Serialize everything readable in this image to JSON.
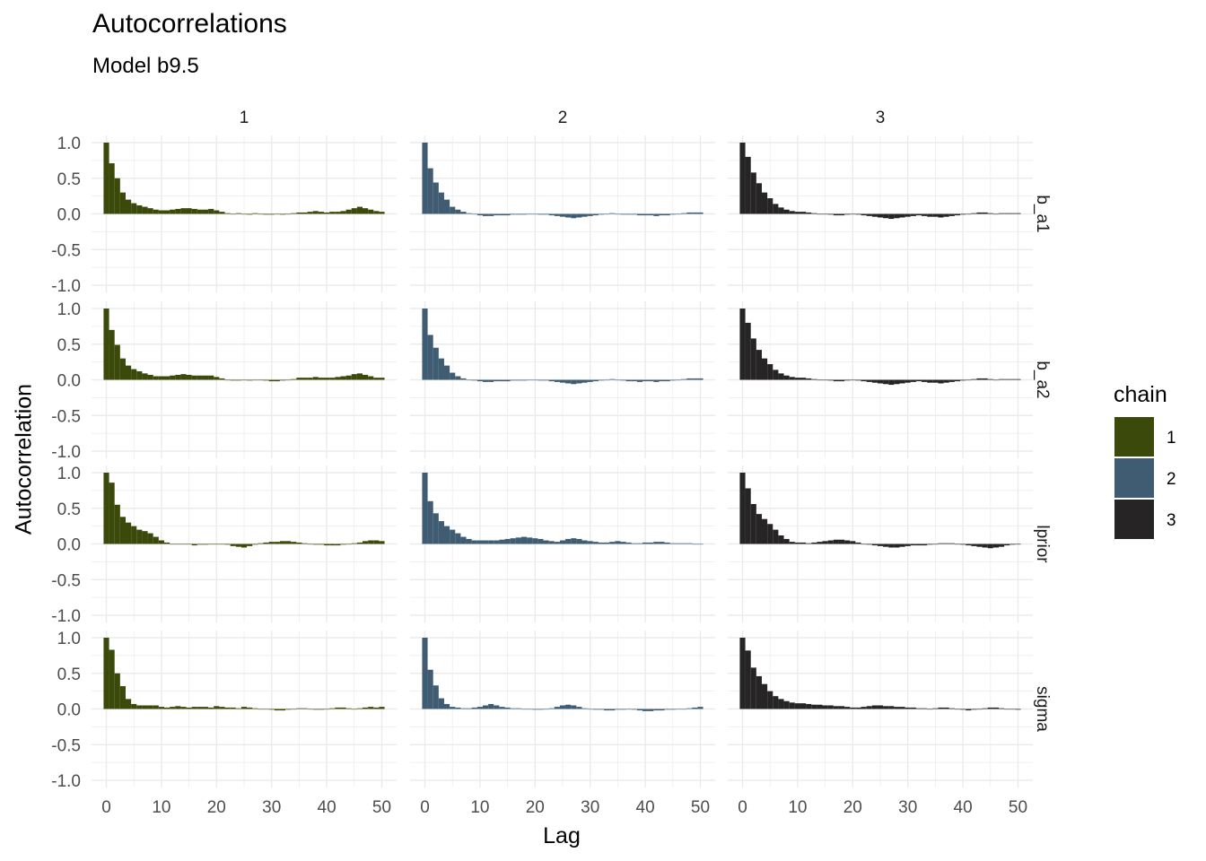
{
  "chart_data": {
    "type": "bar",
    "title": "Autocorrelations",
    "subtitle": "Model b9.5",
    "xlabel": "Lag",
    "ylabel": "Autocorrelation",
    "xlim": [
      0,
      50
    ],
    "ylim": [
      -1.0,
      1.0
    ],
    "x_ticks": [
      0,
      10,
      20,
      30,
      40,
      50
    ],
    "y_ticks": [
      -1.0,
      -0.5,
      0.0,
      0.5,
      1.0
    ],
    "y_tick_labels": [
      "-1.0",
      "-0.5",
      "0.0",
      "0.5",
      "1.0"
    ],
    "grid": true,
    "legend": {
      "title": "chain",
      "placement": "right",
      "entries": [
        {
          "label": "1",
          "color": "#3b4a0b"
        },
        {
          "label": "2",
          "color": "#3f5c72"
        },
        {
          "label": "3",
          "color": "#262424"
        }
      ]
    },
    "columns": [
      "1",
      "2",
      "3"
    ],
    "rows": [
      "b_a1",
      "b_a2",
      "lprior",
      "sigma"
    ],
    "lags": [
      0,
      1,
      2,
      3,
      4,
      5,
      6,
      7,
      8,
      9,
      10,
      11,
      12,
      13,
      14,
      15,
      16,
      17,
      18,
      19,
      20,
      21,
      22,
      23,
      24,
      25,
      26,
      27,
      28,
      29,
      30,
      31,
      32,
      33,
      34,
      35,
      36,
      37,
      38,
      39,
      40,
      41,
      42,
      43,
      44,
      45,
      46,
      47,
      48,
      49,
      50
    ],
    "panels": [
      {
        "row": "b_a1",
        "chain": "1",
        "values": [
          1.0,
          0.71,
          0.5,
          0.3,
          0.2,
          0.15,
          0.12,
          0.1,
          0.08,
          0.06,
          0.05,
          0.05,
          0.06,
          0.07,
          0.08,
          0.08,
          0.07,
          0.06,
          0.06,
          0.07,
          0.05,
          0.03,
          0.01,
          0.0,
          0.01,
          0.0,
          -0.01,
          0.01,
          0.0,
          -0.01,
          -0.01,
          0.0,
          -0.01,
          0.0,
          0.01,
          0.02,
          0.02,
          0.03,
          0.04,
          0.03,
          0.02,
          0.03,
          0.03,
          0.04,
          0.06,
          0.08,
          0.1,
          0.08,
          0.06,
          0.04,
          0.03
        ]
      },
      {
        "row": "b_a1",
        "chain": "2",
        "values": [
          1.0,
          0.64,
          0.44,
          0.3,
          0.2,
          0.1,
          0.06,
          0.03,
          0.01,
          0.0,
          -0.02,
          -0.03,
          -0.03,
          -0.02,
          -0.02,
          -0.02,
          -0.01,
          -0.01,
          -0.01,
          0.0,
          0.0,
          -0.01,
          -0.01,
          -0.02,
          -0.03,
          -0.04,
          -0.05,
          -0.06,
          -0.05,
          -0.04,
          -0.03,
          -0.02,
          -0.01,
          0.0,
          0.01,
          0.0,
          -0.01,
          -0.01,
          -0.01,
          -0.02,
          -0.02,
          -0.02,
          -0.03,
          -0.02,
          -0.02,
          -0.01,
          0.0,
          0.01,
          0.02,
          0.02,
          0.02
        ]
      },
      {
        "row": "b_a1",
        "chain": "3",
        "values": [
          1.0,
          0.8,
          0.58,
          0.43,
          0.3,
          0.22,
          0.14,
          0.09,
          0.06,
          0.04,
          0.03,
          0.03,
          0.02,
          0.01,
          0.0,
          0.0,
          -0.01,
          -0.02,
          -0.02,
          -0.01,
          0.0,
          -0.01,
          -0.02,
          -0.03,
          -0.04,
          -0.05,
          -0.06,
          -0.07,
          -0.06,
          -0.05,
          -0.04,
          -0.03,
          -0.02,
          -0.03,
          -0.04,
          -0.04,
          -0.05,
          -0.04,
          -0.03,
          -0.02,
          -0.01,
          0.0,
          0.01,
          0.02,
          0.02,
          0.01,
          0.0,
          0.01,
          0.01,
          0.01,
          0.01
        ]
      },
      {
        "row": "b_a2",
        "chain": "1",
        "values": [
          1.0,
          0.7,
          0.49,
          0.3,
          0.2,
          0.15,
          0.12,
          0.09,
          0.07,
          0.05,
          0.05,
          0.05,
          0.06,
          0.07,
          0.08,
          0.07,
          0.06,
          0.06,
          0.06,
          0.06,
          0.04,
          0.02,
          0.0,
          -0.01,
          -0.01,
          0.0,
          -0.01,
          0.0,
          0.0,
          -0.01,
          -0.02,
          -0.02,
          -0.01,
          0.0,
          0.01,
          0.03,
          0.03,
          0.03,
          0.04,
          0.03,
          0.03,
          0.03,
          0.04,
          0.05,
          0.06,
          0.08,
          0.09,
          0.07,
          0.05,
          0.03,
          0.03
        ]
      },
      {
        "row": "b_a2",
        "chain": "2",
        "values": [
          1.0,
          0.63,
          0.45,
          0.3,
          0.2,
          0.1,
          0.05,
          0.02,
          0.0,
          -0.01,
          -0.02,
          -0.03,
          -0.03,
          -0.02,
          -0.02,
          -0.02,
          -0.01,
          -0.01,
          -0.01,
          0.0,
          0.0,
          -0.01,
          -0.01,
          -0.02,
          -0.03,
          -0.04,
          -0.05,
          -0.06,
          -0.05,
          -0.04,
          -0.03,
          -0.02,
          -0.01,
          0.0,
          0.01,
          0.0,
          -0.01,
          -0.02,
          -0.02,
          -0.03,
          -0.02,
          -0.02,
          -0.03,
          -0.02,
          -0.02,
          -0.01,
          0.0,
          0.01,
          0.02,
          0.02,
          0.02
        ]
      },
      {
        "row": "b_a2",
        "chain": "3",
        "values": [
          1.0,
          0.8,
          0.58,
          0.42,
          0.3,
          0.22,
          0.14,
          0.09,
          0.06,
          0.04,
          0.03,
          0.03,
          0.02,
          0.01,
          0.0,
          0.0,
          -0.01,
          -0.02,
          -0.02,
          -0.01,
          0.0,
          -0.01,
          -0.02,
          -0.03,
          -0.04,
          -0.05,
          -0.06,
          -0.07,
          -0.06,
          -0.05,
          -0.04,
          -0.03,
          -0.02,
          -0.03,
          -0.04,
          -0.04,
          -0.05,
          -0.04,
          -0.03,
          -0.02,
          -0.01,
          0.0,
          0.01,
          0.02,
          0.02,
          0.01,
          0.0,
          0.01,
          0.01,
          0.01,
          0.01
        ]
      },
      {
        "row": "lprior",
        "chain": "1",
        "values": [
          1.0,
          0.86,
          0.55,
          0.38,
          0.3,
          0.25,
          0.2,
          0.18,
          0.15,
          0.1,
          0.05,
          0.02,
          0.0,
          0.0,
          0.0,
          0.0,
          -0.02,
          -0.01,
          -0.01,
          0.0,
          0.0,
          0.0,
          -0.01,
          -0.03,
          -0.04,
          -0.05,
          -0.03,
          -0.01,
          0.01,
          0.02,
          0.03,
          0.03,
          0.04,
          0.04,
          0.03,
          0.02,
          0.01,
          0.0,
          -0.01,
          -0.01,
          -0.02,
          -0.02,
          -0.02,
          -0.01,
          0.0,
          0.01,
          0.02,
          0.04,
          0.05,
          0.05,
          0.04
        ]
      },
      {
        "row": "lprior",
        "chain": "2",
        "values": [
          1.0,
          0.6,
          0.43,
          0.32,
          0.25,
          0.2,
          0.15,
          0.1,
          0.07,
          0.05,
          0.05,
          0.05,
          0.05,
          0.05,
          0.06,
          0.07,
          0.08,
          0.09,
          0.1,
          0.09,
          0.08,
          0.07,
          0.05,
          0.04,
          0.03,
          0.05,
          0.07,
          0.08,
          0.07,
          0.05,
          0.04,
          0.03,
          0.02,
          0.02,
          0.03,
          0.04,
          0.03,
          0.02,
          0.01,
          0.01,
          0.02,
          0.02,
          0.03,
          0.03,
          0.02,
          0.01,
          0.01,
          0.01,
          0.01,
          0.0,
          0.0
        ]
      },
      {
        "row": "lprior",
        "chain": "3",
        "values": [
          1.0,
          0.78,
          0.56,
          0.42,
          0.35,
          0.28,
          0.2,
          0.12,
          0.07,
          0.03,
          0.02,
          0.02,
          0.01,
          0.02,
          0.03,
          0.04,
          0.05,
          0.06,
          0.06,
          0.05,
          0.04,
          0.02,
          0.0,
          -0.01,
          -0.02,
          -0.03,
          -0.04,
          -0.05,
          -0.05,
          -0.04,
          -0.03,
          -0.02,
          -0.02,
          -0.02,
          -0.01,
          0.0,
          0.01,
          0.01,
          0.01,
          0.0,
          -0.01,
          -0.02,
          -0.03,
          -0.04,
          -0.05,
          -0.06,
          -0.05,
          -0.04,
          -0.02,
          -0.01,
          0.0
        ]
      },
      {
        "row": "sigma",
        "chain": "1",
        "values": [
          1.0,
          0.83,
          0.5,
          0.32,
          0.14,
          0.07,
          0.05,
          0.05,
          0.05,
          0.05,
          0.03,
          0.02,
          0.03,
          0.04,
          0.03,
          0.02,
          0.03,
          0.03,
          0.03,
          0.02,
          0.04,
          0.03,
          0.02,
          0.02,
          0.01,
          0.03,
          0.02,
          0.01,
          0.0,
          0.0,
          -0.01,
          -0.02,
          -0.02,
          -0.01,
          0.0,
          0.01,
          0.01,
          0.0,
          -0.01,
          -0.01,
          0.0,
          0.01,
          0.02,
          0.02,
          0.01,
          0.0,
          0.01,
          0.02,
          0.03,
          0.02,
          0.03
        ]
      },
      {
        "row": "sigma",
        "chain": "2",
        "values": [
          1.0,
          0.55,
          0.33,
          0.15,
          0.07,
          0.03,
          0.02,
          0.01,
          0.01,
          0.02,
          0.03,
          0.05,
          0.07,
          0.05,
          0.03,
          0.02,
          0.01,
          0.01,
          0.0,
          0.0,
          -0.01,
          -0.01,
          0.0,
          0.01,
          0.03,
          0.05,
          0.06,
          0.05,
          0.03,
          0.01,
          0.0,
          -0.01,
          -0.01,
          -0.02,
          -0.02,
          -0.01,
          -0.01,
          0.0,
          -0.01,
          -0.02,
          -0.03,
          -0.03,
          -0.02,
          -0.02,
          -0.01,
          -0.01,
          0.0,
          0.0,
          0.01,
          0.02,
          0.03
        ]
      },
      {
        "row": "sigma",
        "chain": "3",
        "values": [
          1.0,
          0.82,
          0.58,
          0.46,
          0.35,
          0.25,
          0.18,
          0.14,
          0.11,
          0.09,
          0.08,
          0.08,
          0.07,
          0.06,
          0.06,
          0.05,
          0.05,
          0.04,
          0.04,
          0.03,
          0.02,
          0.02,
          0.03,
          0.04,
          0.05,
          0.05,
          0.04,
          0.04,
          0.03,
          0.03,
          0.02,
          0.02,
          0.01,
          0.01,
          0.0,
          0.01,
          0.02,
          0.02,
          0.01,
          0.0,
          -0.01,
          -0.02,
          -0.01,
          0.0,
          0.01,
          0.02,
          0.02,
          0.01,
          0.0,
          0.0,
          -0.01
        ]
      }
    ]
  }
}
